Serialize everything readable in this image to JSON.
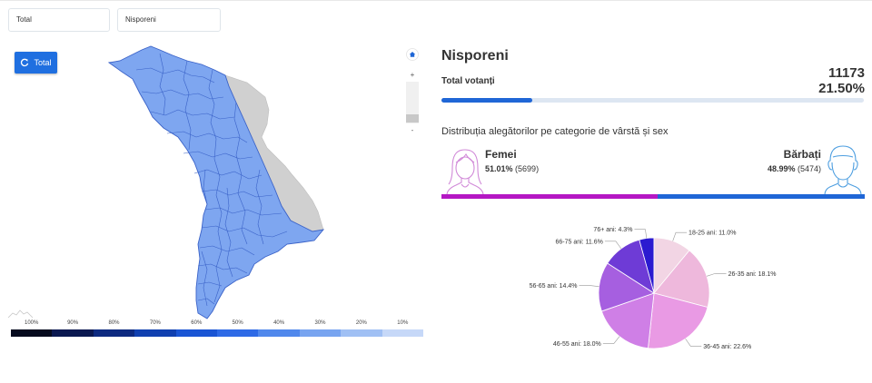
{
  "filters": {
    "type_value": "Total",
    "district_value": "Nisporeni"
  },
  "map": {
    "reset_button_label": "Total",
    "legend_labels": [
      "100%",
      "90%",
      "80%",
      "70%",
      "60%",
      "50%",
      "40%",
      "30%",
      "20%",
      "10%"
    ],
    "legend_colors": [
      "#050a1e",
      "#0a1850",
      "#0d2a80",
      "#1040b0",
      "#1a55d4",
      "#2e6ae6",
      "#5088ec",
      "#78a4f0",
      "#a0c0f4",
      "#c6d8f8"
    ],
    "fill_color": "#7ea6f0",
    "stroke_color": "#3a62c8",
    "no_data_color": "#d0d0d0"
  },
  "zoom": {
    "plus": "+",
    "minus": "-"
  },
  "district": {
    "name": "Nisporeni",
    "total_label": "Total votanți",
    "total_value": "11173",
    "total_percent": "21.50%",
    "turnout_fraction": 0.215
  },
  "distribution": {
    "title": "Distribuția alegătorilor pe categorie de vârstă și sex",
    "female": {
      "label": "Femei",
      "percent": "51.01%",
      "count": "(5699)",
      "fraction": 0.5101
    },
    "male": {
      "label": "Bărbați",
      "percent": "48.99%",
      "count": "(5474)",
      "fraction": 0.4899
    },
    "female_color": "#b517c4",
    "male_color": "#1f66d6"
  },
  "chart_data": {
    "type": "pie",
    "slices": [
      {
        "label": "18-25 ani: 11.0%",
        "value": 11.0,
        "color": "#f2d5e4"
      },
      {
        "label": "26-35 ani: 18.1%",
        "value": 18.1,
        "color": "#eeb8dc"
      },
      {
        "label": "36-45 ani: 22.6%",
        "value": 22.6,
        "color": "#e99ae4"
      },
      {
        "label": "46-55 ani: 18.0%",
        "value": 18.0,
        "color": "#cf7fe6"
      },
      {
        "label": "56-65 ani: 14.4%",
        "value": 14.4,
        "color": "#a65fe0"
      },
      {
        "label": "66-75 ani: 11.6%",
        "value": 11.6,
        "color": "#6e3bd6"
      },
      {
        "label": "76+ ani: 4.3%",
        "value": 4.3,
        "color": "#2b1ad0"
      }
    ]
  }
}
